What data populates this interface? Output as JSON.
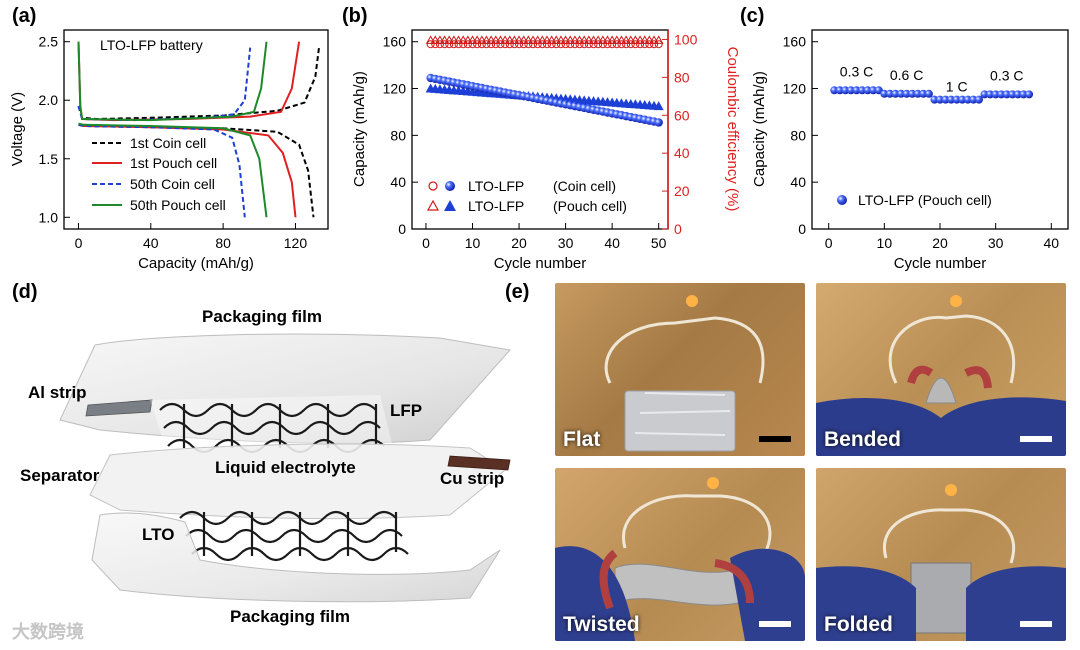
{
  "panel_labels": {
    "a": "(a)",
    "b": "(b)",
    "c": "(c)",
    "d": "(d)",
    "e": "(e)"
  },
  "chart_data": [
    {
      "type": "line",
      "id": "a",
      "title": "LTO-LFP battery",
      "xlabel": "Capacity (mAh/g)",
      "ylabel": "Voltage (V)",
      "xlim": [
        -8,
        138
      ],
      "ylim": [
        0.9,
        2.6
      ],
      "xticks": [
        0,
        40,
        80,
        120
      ],
      "yticks": [
        1.0,
        1.5,
        2.0,
        2.5
      ],
      "series": [
        {
          "name": "1st Coin cell",
          "color": "#000000",
          "dash": "dashed",
          "charge": [
            [
              0,
              1.95
            ],
            [
              2,
              1.85
            ],
            [
              10,
              1.84
            ],
            [
              40,
              1.85
            ],
            [
              80,
              1.87
            ],
            [
              110,
              1.91
            ],
            [
              125,
              1.98
            ],
            [
              131,
              2.2
            ],
            [
              133,
              2.45
            ]
          ],
          "discharge": [
            [
              0,
              1.79
            ],
            [
              3,
              1.78
            ],
            [
              40,
              1.77
            ],
            [
              80,
              1.76
            ],
            [
              110,
              1.73
            ],
            [
              122,
              1.62
            ],
            [
              127,
              1.4
            ],
            [
              130,
              1.0
            ]
          ]
        },
        {
          "name": "1st Pouch cell",
          "color": "#e02020",
          "dash": "solid",
          "charge": [
            [
              0,
              2.5
            ],
            [
              1,
              1.95
            ],
            [
              2,
              1.84
            ],
            [
              20,
              1.83
            ],
            [
              60,
              1.84
            ],
            [
              95,
              1.86
            ],
            [
              112,
              1.9
            ],
            [
              118,
              2.1
            ],
            [
              122,
              2.5
            ]
          ],
          "discharge": [
            [
              0,
              1.79
            ],
            [
              3,
              1.78
            ],
            [
              40,
              1.77
            ],
            [
              80,
              1.75
            ],
            [
              105,
              1.7
            ],
            [
              113,
              1.55
            ],
            [
              118,
              1.3
            ],
            [
              120,
              1.0
            ]
          ]
        },
        {
          "name": "50th Coin cell",
          "color": "#1d3fd6",
          "dash": "dashed",
          "charge": [
            [
              0,
              1.95
            ],
            [
              2,
              1.84
            ],
            [
              30,
              1.83
            ],
            [
              70,
              1.85
            ],
            [
              86,
              1.88
            ],
            [
              92,
              2.0
            ],
            [
              95,
              2.45
            ]
          ],
          "discharge": [
            [
              0,
              1.79
            ],
            [
              3,
              1.78
            ],
            [
              40,
              1.77
            ],
            [
              75,
              1.75
            ],
            [
              85,
              1.68
            ],
            [
              89,
              1.45
            ],
            [
              92,
              1.0
            ]
          ]
        },
        {
          "name": "50th Pouch cell",
          "color": "#1c8a2a",
          "dash": "solid",
          "charge": [
            [
              0,
              2.5
            ],
            [
              1,
              1.95
            ],
            [
              2,
              1.84
            ],
            [
              40,
              1.83
            ],
            [
              85,
              1.86
            ],
            [
              97,
              1.9
            ],
            [
              101,
              2.1
            ],
            [
              104,
              2.5
            ]
          ],
          "discharge": [
            [
              0,
              1.8
            ],
            [
              3,
              1.79
            ],
            [
              40,
              1.78
            ],
            [
              80,
              1.76
            ],
            [
              95,
              1.7
            ],
            [
              100,
              1.5
            ],
            [
              102,
              1.25
            ],
            [
              104,
              1.0
            ]
          ]
        }
      ]
    },
    {
      "type": "scatter",
      "id": "b",
      "xlabel": "Cycle number",
      "ylabel": "Capacity (mAh/g)",
      "y2label": "Coulombic efficiency (%)",
      "xlim": [
        -3,
        52
      ],
      "ylim": [
        0,
        170
      ],
      "y2lim": [
        0,
        105
      ],
      "xticks": [
        0,
        10,
        20,
        30,
        40,
        50
      ],
      "yticks": [
        0,
        40,
        80,
        120,
        160
      ],
      "y2ticks": [
        0,
        20,
        40,
        60,
        80,
        100
      ],
      "capacity_coin": {
        "start": 129,
        "end": 91
      },
      "capacity_pouch": {
        "start": 120,
        "end": 105
      },
      "efficiency_coin": 97.5,
      "efficiency_pouch": 99.5,
      "legend": [
        {
          "label": "LTO-LFP",
          "sub": "(Coin cell)"
        },
        {
          "label": "LTO-LFP",
          "sub": "(Pouch cell)"
        }
      ]
    },
    {
      "type": "scatter",
      "id": "c",
      "xlabel": "Cycle number",
      "ylabel": "Capacity (mAh/g)",
      "xlim": [
        -3,
        43
      ],
      "ylim": [
        0,
        170
      ],
      "xticks": [
        0,
        10,
        20,
        30,
        40
      ],
      "yticks": [
        0,
        40,
        80,
        120,
        160
      ],
      "segments": [
        {
          "rate": "0.3 C",
          "from": 1,
          "to": 9,
          "value": 118.5
        },
        {
          "rate": "0.6 C",
          "from": 10,
          "to": 18,
          "value": 115.5
        },
        {
          "rate": "1 C",
          "from": 19,
          "to": 27,
          "value": 110.5
        },
        {
          "rate": "0.3 C",
          "from": 28,
          "to": 36,
          "value": 115
        }
      ],
      "legend": "LTO-LFP (Pouch cell)"
    }
  ],
  "diagram": {
    "labels": {
      "packaging_top": "Packaging film",
      "al_strip": "Al strip",
      "lfp": "LFP",
      "separator": "Separator",
      "liquid_electrolyte": "Liquid electrolyte",
      "cu_strip": "Cu strip",
      "lto": "LTO",
      "packaging_bottom": "Packaging film"
    }
  },
  "photos": [
    {
      "label": "Flat"
    },
    {
      "label": "Bended"
    },
    {
      "label": "Twisted"
    },
    {
      "label": "Folded"
    }
  ],
  "watermark": "大数跨境",
  "colors": {
    "coin": "#d01818",
    "pouch": "#1d3fd6",
    "blue": "#1d3fd6",
    "red": "#e02020"
  }
}
